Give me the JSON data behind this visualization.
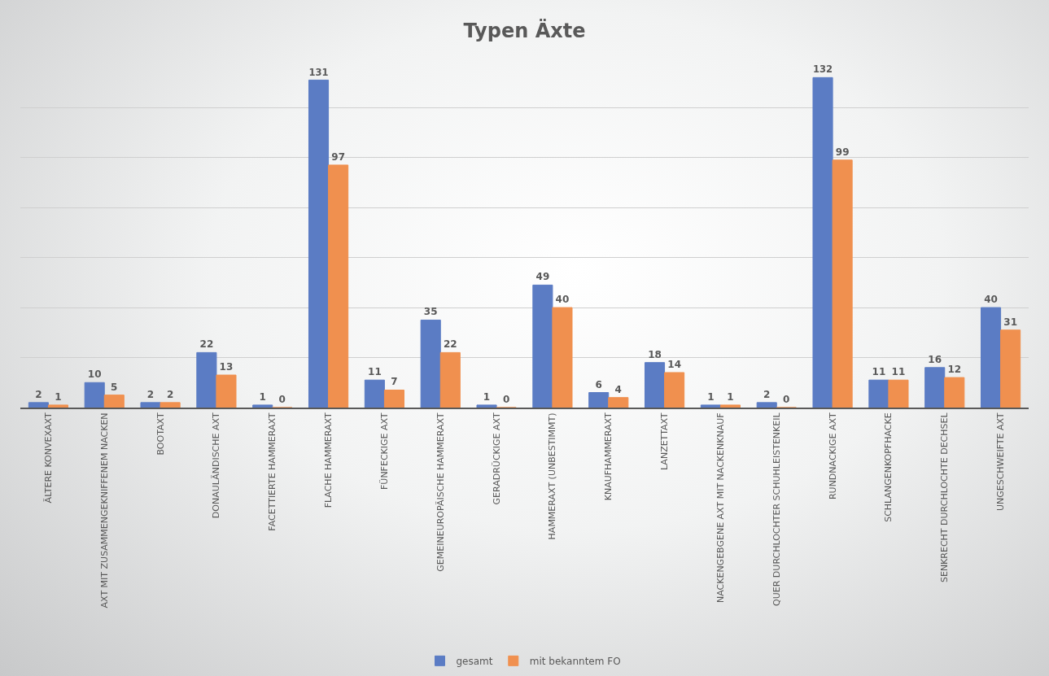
{
  "chart_data": {
    "type": "bar",
    "title": "Typen Äxte",
    "categories": [
      "ÄLTERE KONVEXAXT",
      "AXT MIT ZUSAMMENGEKNIFFENEM NACKEN",
      "BOOTAXT",
      "DONAULÄNDISCHE AXT",
      "FACETTIERTE HAMMERAXT",
      "FLACHE HAMMERAXT",
      "FÜNFECKIGE AXT",
      "GEMEINEUROPÄISCHE HAMMERAXT",
      "GERADRÜCKIGE AXT",
      "HAMMERAXT (UNBESTIMMT)",
      "KNAUFHAMMERAXT",
      "LANZETTAXT",
      "NACKENGEBGENE AXT MIT NACKENKNAUF",
      "QUER DURCHLOCHTER SCHUHLEISTENKEIL",
      "RUNDNACKIGE AXT",
      "SCHLANGENKOPFHACKE",
      "SENKRECHT DURCHLOCHTE DECHSEL",
      "UNGESCHWEIFTE AXT"
    ],
    "series": [
      {
        "name": "gesamt",
        "color": "#5b7cc4",
        "values": [
          2,
          10,
          2,
          22,
          1,
          131,
          11,
          35,
          1,
          49,
          6,
          18,
          1,
          2,
          132,
          11,
          16,
          40
        ]
      },
      {
        "name": "mit bekanntem FO",
        "color": "#f0904f",
        "values": [
          1,
          5,
          2,
          13,
          0,
          97,
          7,
          22,
          0,
          40,
          4,
          14,
          1,
          0,
          99,
          11,
          12,
          31
        ]
      }
    ],
    "tick_labels": "x",
    "grid": "y",
    "data_labels": true,
    "legend": "bottom"
  }
}
